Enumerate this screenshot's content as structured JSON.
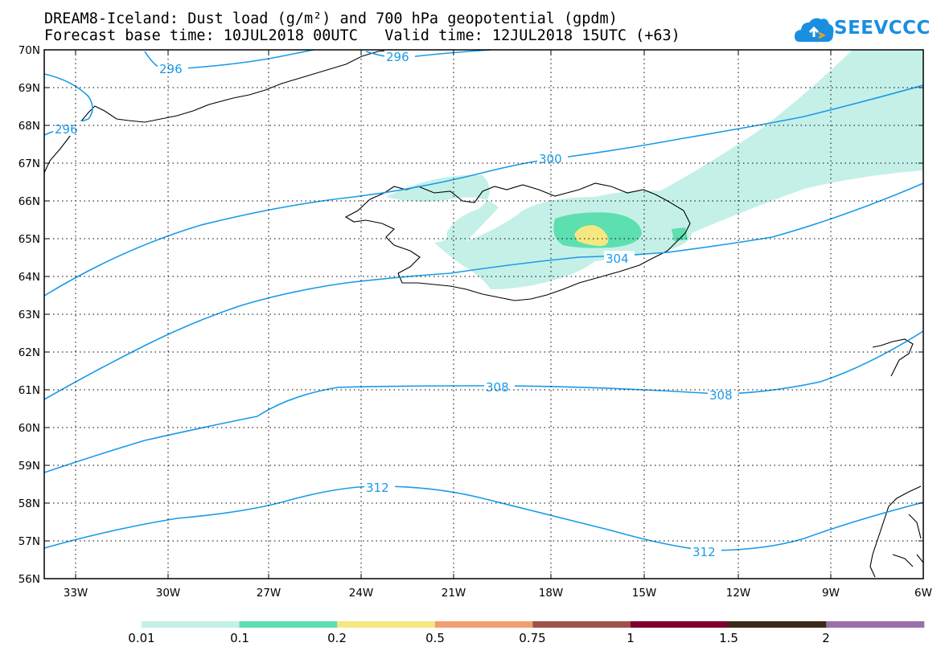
{
  "header": {
    "line1": "DREAM8-Iceland: Dust load (g/m²) and 700 hPa geopotential (gpdm)",
    "line2": "Forecast base time: 10JUL2018 00UTC   Valid time: 12JUL2018 15UTC (+63)"
  },
  "logo": {
    "text": "SEEVCCC",
    "icon": "cloud-upload-icon"
  },
  "axes": {
    "lat_labels": [
      "70N",
      "69N",
      "68N",
      "67N",
      "66N",
      "65N",
      "64N",
      "63N",
      "62N",
      "61N",
      "60N",
      "59N",
      "58N",
      "57N",
      "56N"
    ],
    "lon_labels": [
      "33W",
      "30W",
      "27W",
      "24W",
      "21W",
      "18W",
      "15W",
      "12W",
      "9W",
      "6W"
    ]
  },
  "contours": {
    "labels": [
      "296",
      "296",
      "296",
      "300",
      "304",
      "308",
      "308",
      "312",
      "312"
    ],
    "color": "#1a9be8"
  },
  "colorbar": {
    "colors": [
      "#c4f0e8",
      "#5ddfb0",
      "#f5e882",
      "#f0a070",
      "#a0504a",
      "#800030",
      "#3a2a1a",
      "#9a70a8"
    ],
    "tick_labels": [
      "0.01",
      "0.1",
      "0.2",
      "0.5",
      "0.75",
      "1",
      "1.5",
      "2"
    ]
  }
}
